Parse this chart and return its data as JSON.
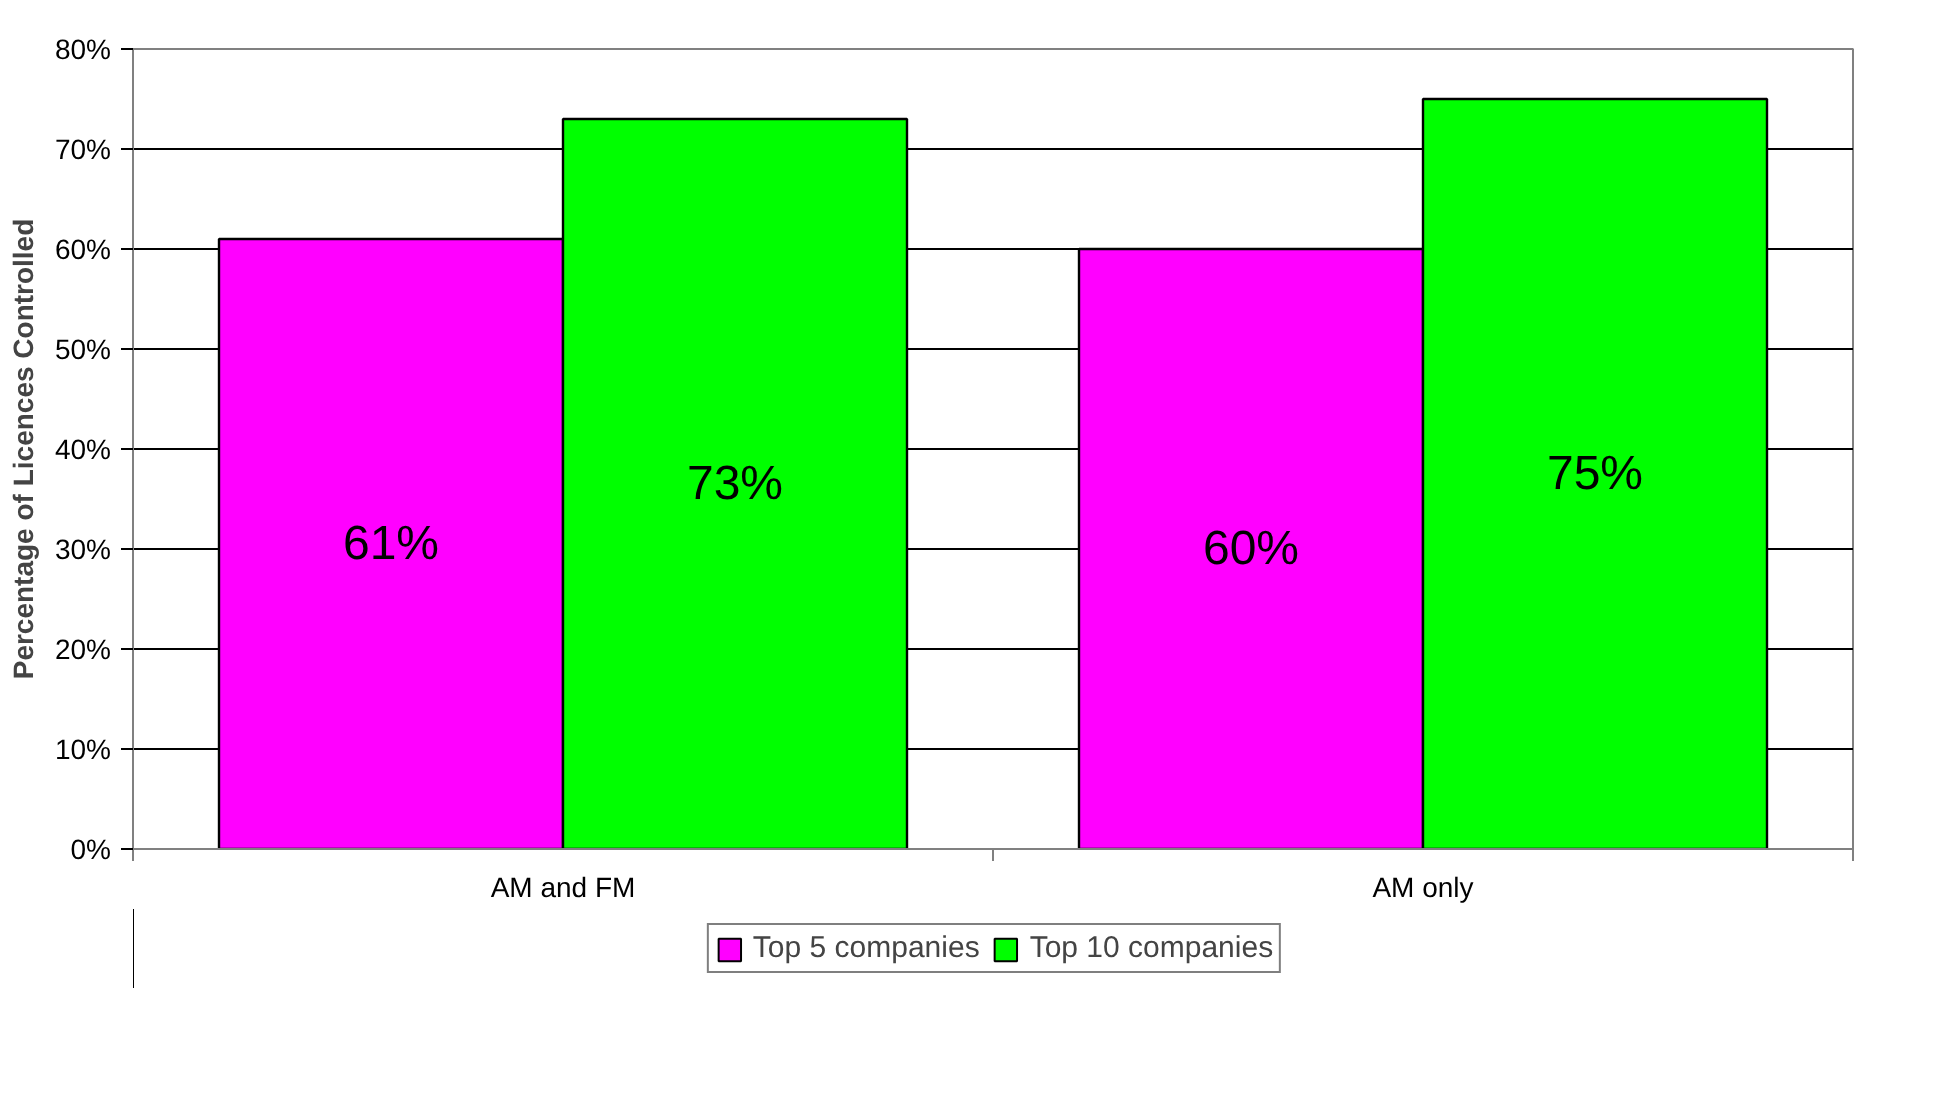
{
  "chart_data": {
    "type": "bar",
    "ylabel": "Percentage of Licences Controlled",
    "categories": [
      "AM and FM",
      "AM only"
    ],
    "series": [
      {
        "name": "Top 5 companies",
        "color": "#ff00ff",
        "values": [
          61,
          60
        ],
        "value_labels": [
          "61%",
          "60%"
        ]
      },
      {
        "name": "Top 10 companies",
        "color": "#00ff00",
        "values": [
          73,
          75
        ],
        "value_labels": [
          "73%",
          "75%"
        ]
      }
    ],
    "ylim": [
      0,
      80
    ],
    "yticks": [
      {
        "value": 0,
        "label": "0%"
      },
      {
        "value": 10,
        "label": "10%"
      },
      {
        "value": 20,
        "label": "20%"
      },
      {
        "value": 30,
        "label": "30%"
      },
      {
        "value": 40,
        "label": "40%"
      },
      {
        "value": 50,
        "label": "50%"
      },
      {
        "value": 60,
        "label": "60%"
      },
      {
        "value": 70,
        "label": "70%"
      },
      {
        "value": 80,
        "label": "80%"
      }
    ],
    "grid": "y",
    "legend": "bottom"
  }
}
